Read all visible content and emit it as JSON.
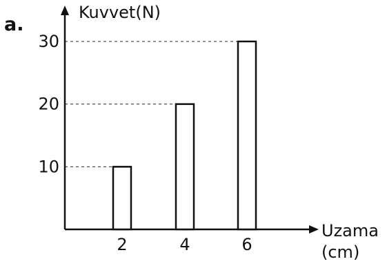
{
  "panel_label": "a.",
  "chart_data": {
    "type": "bar",
    "categories": [
      "2",
      "4",
      "6"
    ],
    "values": [
      10,
      20,
      30
    ],
    "xlabel_line1": "Uzama",
    "xlabel_line2": "(cm)",
    "ylabel": "Kuvvet(N)",
    "yticks": [
      "10",
      "20",
      "30"
    ],
    "ylim": [
      0,
      30
    ],
    "reference_lines": "dashed lines from y-axis to each bar top",
    "bar_fill": "#ffffff",
    "bar_stroke": "#111111"
  }
}
